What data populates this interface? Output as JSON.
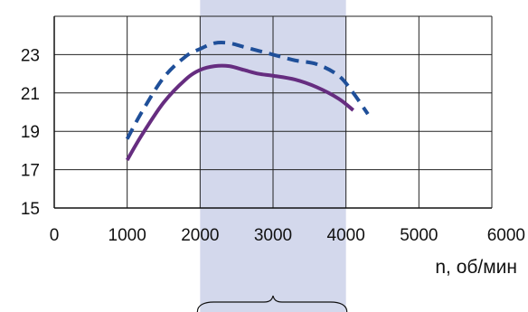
{
  "chart_data": {
    "type": "line",
    "title": "",
    "xlabel": "n, об/мин",
    "ylabel": "",
    "xlim": [
      0,
      6000
    ],
    "ylim": [
      15,
      25
    ],
    "x_ticks": [
      0,
      1000,
      2000,
      3000,
      4000,
      5000,
      6000
    ],
    "y_ticks": [
      15,
      17,
      19,
      21,
      23
    ],
    "grid": true,
    "highlight_range": {
      "x": [
        2000,
        4000
      ],
      "color": "#d3d8ec"
    },
    "series": [
      {
        "style": "dashed",
        "color": "#1f4f99",
        "x": [
          1000,
          1200,
          1500,
          1800,
          2000,
          2200,
          2400,
          2600,
          2800,
          3000,
          3300,
          3600,
          3900,
          4100,
          4300
        ],
        "y": [
          18.6,
          20.0,
          21.8,
          22.9,
          23.3,
          23.6,
          23.6,
          23.4,
          23.2,
          23.0,
          22.7,
          22.5,
          21.9,
          21.0,
          19.9
        ]
      },
      {
        "style": "solid",
        "color": "#662d80",
        "x": [
          1000,
          1200,
          1500,
          1800,
          2000,
          2200,
          2400,
          2600,
          2800,
          3000,
          3300,
          3600,
          3900,
          4100
        ],
        "y": [
          17.5,
          18.8,
          20.5,
          21.7,
          22.2,
          22.4,
          22.4,
          22.2,
          22.0,
          21.9,
          21.7,
          21.3,
          20.7,
          20.1
        ]
      }
    ]
  }
}
